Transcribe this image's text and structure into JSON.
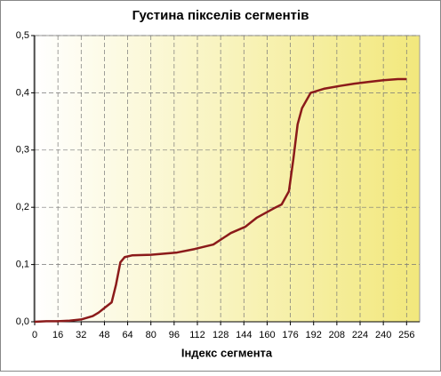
{
  "chart_data": {
    "type": "line",
    "title": "Густина пікселів сегментів",
    "x_label": "Індекс сегмента",
    "x": [
      0,
      8,
      16,
      24,
      32,
      40,
      44,
      48,
      53,
      56,
      59,
      62,
      67,
      80,
      98,
      110,
      123,
      135,
      145,
      153,
      166,
      170,
      175,
      178,
      181,
      184,
      190,
      199,
      210,
      220,
      230,
      240,
      250,
      256
    ],
    "series": [
      {
        "name": "Густина",
        "color": "#8b1a1a",
        "values": [
          0.0,
          0.001,
          0.001,
          0.002,
          0.004,
          0.01,
          0.016,
          0.024,
          0.034,
          0.065,
          0.104,
          0.113,
          0.116,
          0.117,
          0.121,
          0.127,
          0.135,
          0.155,
          0.166,
          0.182,
          0.2,
          0.205,
          0.228,
          0.283,
          0.345,
          0.373,
          0.4,
          0.407,
          0.412,
          0.416,
          0.419,
          0.422,
          0.424,
          0.424
        ]
      }
    ],
    "xlim": [
      0,
      265
    ],
    "xticks": [
      0,
      16,
      32,
      48,
      64,
      80,
      96,
      112,
      128,
      144,
      160,
      176,
      192,
      208,
      224,
      240,
      256
    ],
    "ylim": [
      0,
      0.5
    ],
    "yticks": [
      {
        "value": 0,
        "label": "0,0"
      },
      {
        "value": 0.1,
        "label": "0,1"
      },
      {
        "value": 0.2,
        "label": "0,2"
      },
      {
        "value": 0.3,
        "label": "0,3"
      },
      {
        "value": 0.4,
        "label": "0,4"
      },
      {
        "value": 0.5,
        "label": "0,5"
      }
    ],
    "grid": true
  }
}
